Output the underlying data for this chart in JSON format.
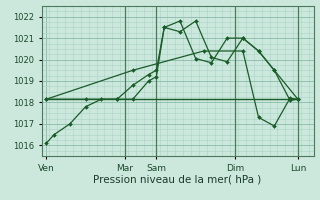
{
  "bg_color": "#cce8dd",
  "grid_color_major": "#88bbaa",
  "grid_color_minor": "#aad4c8",
  "line_color": "#1a5c28",
  "title": "Pression niveau de la mer( hPa )",
  "ylim": [
    1015.5,
    1022.5
  ],
  "yticks": [
    1016,
    1017,
    1018,
    1019,
    1020,
    1021,
    1022
  ],
  "day_labels": [
    "Ven",
    "Mar",
    "Sam",
    "Dim",
    "Lun"
  ],
  "day_positions": [
    0.0,
    5.0,
    7.0,
    12.0,
    16.0
  ],
  "xlim": [
    -0.3,
    17.0
  ],
  "vline_positions": [
    5.0,
    7.0,
    12.0,
    16.0
  ],
  "line1_x": [
    0,
    0.5,
    1.5,
    2.5,
    3.5,
    4.5,
    5.5,
    6.5,
    7.0,
    7.5,
    8.5,
    9.5,
    10.5,
    11.5,
    12.5,
    13.5,
    14.5,
    15.5,
    16.0
  ],
  "line1_y": [
    1016.1,
    1016.5,
    1017.0,
    1017.8,
    1018.15,
    1018.15,
    1018.15,
    1019.0,
    1019.2,
    1021.5,
    1021.3,
    1021.8,
    1020.1,
    1019.9,
    1021.0,
    1020.4,
    1019.5,
    1018.1,
    1018.15
  ],
  "line2_x": [
    0,
    2.5,
    4.5,
    5.5,
    6.5,
    7.0,
    7.5,
    8.5,
    9.5,
    10.5,
    11.5,
    12.5,
    13.5,
    14.5,
    16.0
  ],
  "line2_y": [
    1018.15,
    1018.15,
    1018.15,
    1018.8,
    1019.3,
    1019.5,
    1021.5,
    1021.8,
    1020.05,
    1019.85,
    1021.0,
    1021.0,
    1020.4,
    1019.5,
    1018.15
  ],
  "line3_x": [
    0,
    16.0
  ],
  "line3_y": [
    1018.15,
    1018.15
  ],
  "line4_x": [
    0,
    5.5,
    10.0,
    12.5,
    13.5,
    14.5,
    15.5,
    16.0
  ],
  "line4_y": [
    1018.15,
    1019.5,
    1020.4,
    1020.4,
    1017.3,
    1016.9,
    1018.2,
    1018.15
  ],
  "ytick_fontsize": 6.0,
  "xtick_fontsize": 6.5,
  "xlabel_fontsize": 7.5
}
